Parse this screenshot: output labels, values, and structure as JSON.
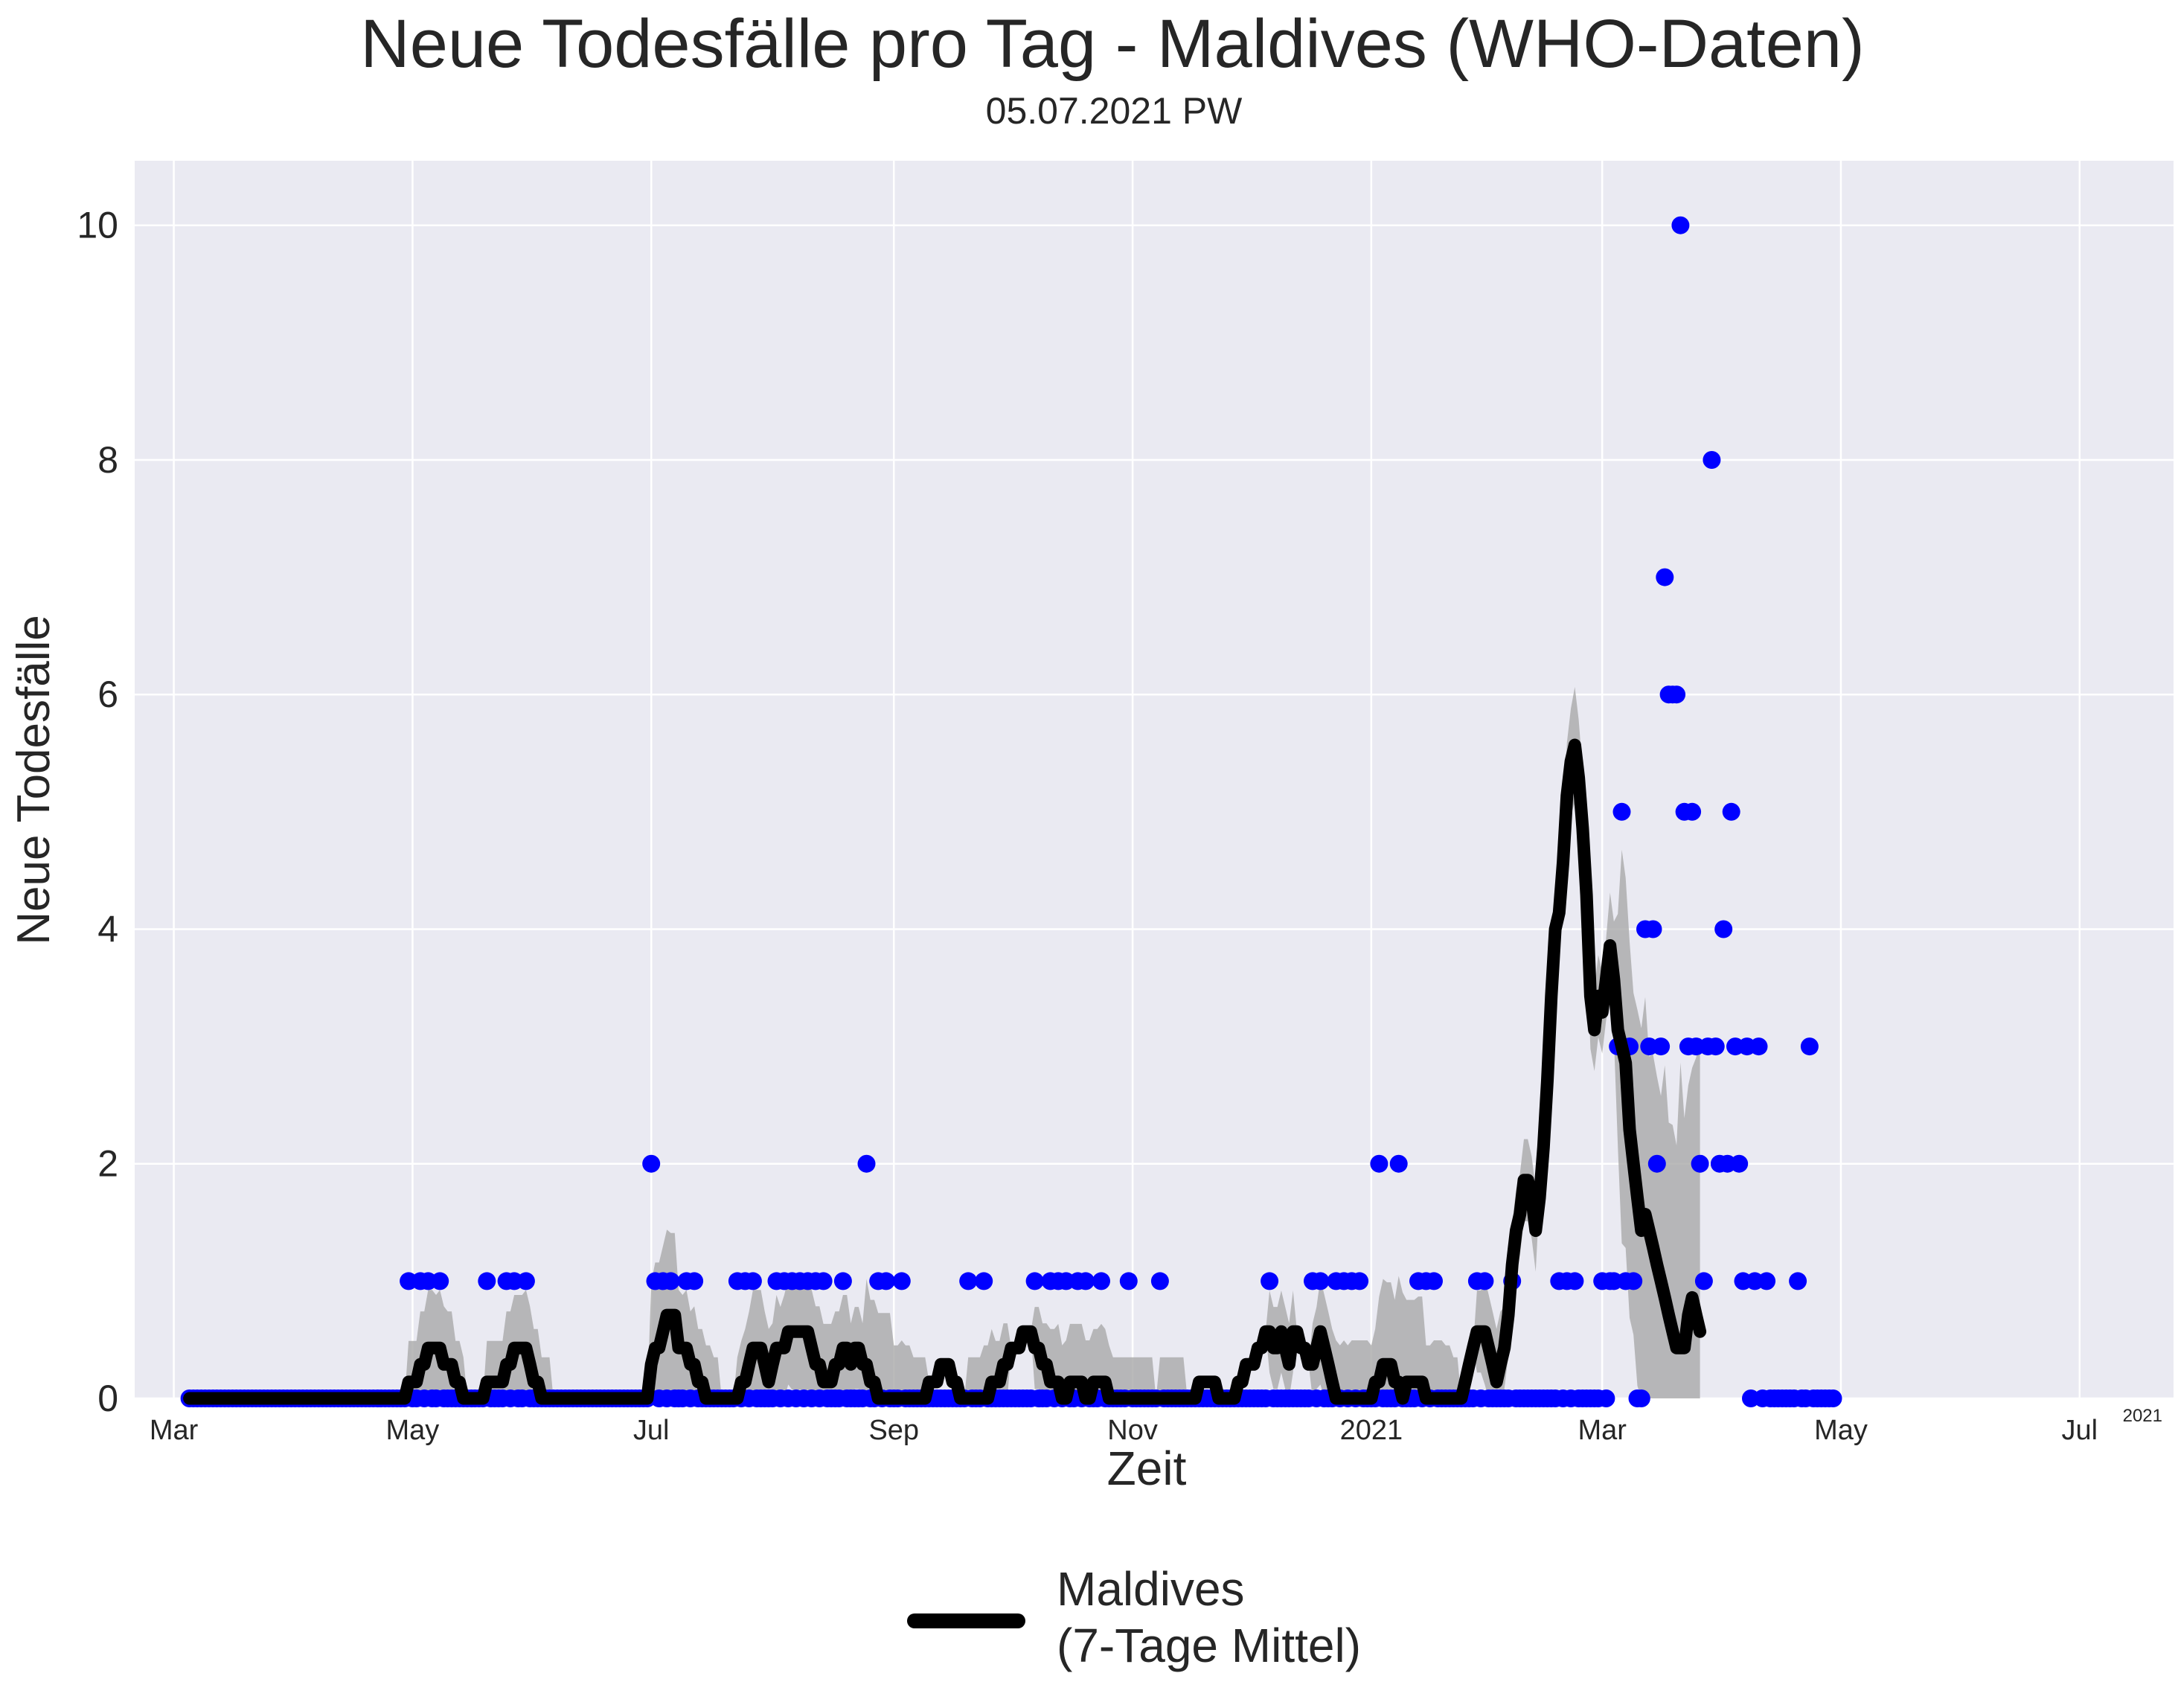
{
  "chart_data": {
    "type": "scatter",
    "title": "Neue Todesfälle pro Tag - Maldives (WHO-Daten)",
    "subtitle": "05.07.2021 PW",
    "xlabel": "Zeit",
    "ylabel": "Neue Todesfälle",
    "x_range": [
      "2020-02-20",
      "2021-07-25"
    ],
    "y_range": [
      0,
      10.55
    ],
    "y_ticks": [
      0,
      2,
      4,
      6,
      8,
      10
    ],
    "x_tick_labels": [
      {
        "date": "2020-03-01",
        "label": "Mar"
      },
      {
        "date": "2020-05-01",
        "label": "May"
      },
      {
        "date": "2020-07-01",
        "label": "Jul"
      },
      {
        "date": "2020-09-01",
        "label": "Sep"
      },
      {
        "date": "2020-11-01",
        "label": "Nov"
      },
      {
        "date": "2021-01-01",
        "label": "2021"
      },
      {
        "date": "2021-03-01",
        "label": "Mar"
      },
      {
        "date": "2021-05-01",
        "label": "May"
      },
      {
        "date": "2021-07-01",
        "label": "Jul"
      }
    ],
    "x_offset_label": "2021",
    "grid": true,
    "legend_position": "bottom-center",
    "legend": {
      "line1": "Maldives",
      "line2": "(7-Tage Mittel)"
    },
    "colors": {
      "background": "#EAEAF2",
      "points": "#0000FF",
      "mean_line": "#000000",
      "band": "#A9A9A9"
    },
    "series": [
      {
        "name": "Neue Todesfälle",
        "style": "points",
        "start_date": "2020-03-05",
        "end_date": "2021-07-04",
        "values": [
          0,
          0,
          0,
          0,
          0,
          0,
          0,
          0,
          0,
          0,
          0,
          0,
          0,
          0,
          0,
          0,
          0,
          0,
          0,
          0,
          0,
          0,
          0,
          0,
          0,
          0,
          0,
          0,
          0,
          0,
          0,
          0,
          0,
          0,
          0,
          0,
          0,
          0,
          0,
          0,
          0,
          0,
          0,
          0,
          0,
          0,
          0,
          0,
          0,
          0,
          0,
          0,
          0,
          0,
          0,
          0,
          1,
          0,
          0,
          1,
          0,
          1,
          0,
          0,
          1,
          0,
          0,
          0,
          0,
          0,
          0,
          0,
          0,
          0,
          0,
          0,
          1,
          0,
          0,
          0,
          0,
          1,
          0,
          1,
          0,
          0,
          1,
          0,
          0,
          0,
          0,
          0,
          0,
          0,
          0,
          0,
          0,
          0,
          0,
          0,
          0,
          0,
          0,
          0,
          0,
          0,
          0,
          0,
          0,
          0,
          0,
          0,
          0,
          0,
          0,
          0,
          0,
          0,
          2,
          1,
          0,
          1,
          0,
          1,
          0,
          0,
          0,
          1,
          0,
          1,
          0,
          0,
          0,
          0,
          0,
          0,
          0,
          0,
          0,
          0,
          1,
          0,
          1,
          0,
          1,
          0,
          0,
          0,
          0,
          0,
          1,
          0,
          1,
          0,
          1,
          0,
          1,
          0,
          1,
          0,
          1,
          0,
          1,
          0,
          0,
          0,
          0,
          1,
          0,
          0,
          0,
          0,
          0,
          2,
          0,
          0,
          1,
          0,
          1,
          0,
          0,
          0,
          1,
          0,
          0,
          0,
          0,
          0,
          0,
          0,
          0,
          0,
          0,
          0,
          0,
          0,
          0,
          0,
          0,
          1,
          0,
          0,
          0,
          1,
          0,
          0,
          0,
          0,
          0,
          0,
          0,
          0,
          0,
          0,
          0,
          0,
          1,
          0,
          0,
          0,
          1,
          0,
          1,
          0,
          1,
          0,
          0,
          1,
          0,
          1,
          0,
          0,
          0,
          1,
          0,
          0,
          0,
          0,
          0,
          0,
          1,
          0,
          0,
          0,
          0,
          0,
          0,
          0,
          1,
          0,
          0,
          0,
          0,
          0,
          0,
          0,
          0,
          0,
          0,
          0,
          0,
          0,
          0,
          0,
          0,
          0,
          0,
          0,
          0,
          0,
          0,
          0,
          0,
          0,
          0,
          0,
          1,
          0,
          0,
          0,
          0,
          0,
          0,
          0,
          0,
          0,
          0,
          1,
          0,
          1,
          0,
          0,
          0,
          1,
          0,
          1,
          0,
          1,
          0,
          1,
          0,
          0,
          0,
          0,
          2,
          0,
          0,
          0,
          0,
          2,
          0,
          0,
          0,
          0,
          1,
          0,
          1,
          0,
          1,
          0,
          0,
          0,
          0,
          0,
          0,
          0,
          0,
          0,
          0,
          1,
          0,
          1,
          0,
          0,
          0,
          0,
          0,
          0,
          1,
          0,
          0,
          0,
          0,
          0,
          0,
          0,
          0,
          0,
          0,
          0,
          1,
          0,
          1,
          0,
          1,
          0,
          0,
          0,
          0,
          0,
          0,
          1,
          0,
          1,
          1,
          3,
          5,
          1,
          3,
          1,
          0,
          0,
          4,
          3,
          4,
          2,
          3,
          7,
          6,
          6,
          6,
          10,
          5,
          3,
          5,
          3,
          2,
          1,
          3,
          8,
          3,
          2,
          4,
          2,
          5,
          3,
          2,
          1,
          3,
          0,
          1,
          3,
          0,
          1,
          0,
          0,
          0,
          0,
          0,
          0,
          0,
          1,
          0,
          0,
          3,
          0,
          0,
          0,
          0,
          0,
          0
        ]
      },
      {
        "name": "Maldives (7-Tage Mittel)",
        "style": "line",
        "start_date": "2020-03-05",
        "end_date": "2021-07-04",
        "values": [
          0,
          0,
          0,
          0,
          0,
          0,
          0,
          0,
          0,
          0,
          0,
          0,
          0,
          0,
          0,
          0,
          0,
          0,
          0,
          0,
          0,
          0,
          0,
          0,
          0,
          0,
          0,
          0,
          0,
          0,
          0,
          0,
          0,
          0,
          0,
          0,
          0,
          0,
          0,
          0,
          0,
          0,
          0,
          0,
          0,
          0,
          0,
          0,
          0,
          0,
          0,
          0,
          0,
          0,
          0,
          0,
          0.14,
          0.14,
          0.14,
          0.29,
          0.29,
          0.43,
          0.43,
          0.43,
          0.43,
          0.29,
          0.29,
          0.29,
          0.14,
          0.14,
          0,
          0,
          0,
          0,
          0,
          0,
          0.14,
          0.14,
          0.14,
          0.14,
          0.14,
          0.29,
          0.29,
          0.43,
          0.43,
          0.43,
          0.43,
          0.29,
          0.14,
          0.14,
          0,
          0,
          0,
          0,
          0,
          0,
          0,
          0,
          0,
          0,
          0,
          0,
          0,
          0,
          0,
          0,
          0,
          0,
          0,
          0,
          0,
          0,
          0,
          0,
          0,
          0,
          0,
          0,
          0.29,
          0.43,
          0.43,
          0.57,
          0.71,
          0.71,
          0.71,
          0.43,
          0.43,
          0.43,
          0.29,
          0.29,
          0.14,
          0.14,
          0,
          0,
          0,
          0,
          0,
          0,
          0,
          0,
          0,
          0.14,
          0.14,
          0.29,
          0.43,
          0.43,
          0.43,
          0.29,
          0.14,
          0.29,
          0.43,
          0.43,
          0.43,
          0.57,
          0.57,
          0.57,
          0.57,
          0.57,
          0.57,
          0.43,
          0.29,
          0.29,
          0.14,
          0.14,
          0.14,
          0.29,
          0.29,
          0.43,
          0.43,
          0.29,
          0.43,
          0.43,
          0.29,
          0.29,
          0.14,
          0.14,
          0,
          0,
          0,
          0,
          0,
          0,
          0,
          0,
          0,
          0,
          0,
          0,
          0,
          0.14,
          0.14,
          0.14,
          0.29,
          0.29,
          0.29,
          0.14,
          0.14,
          0,
          0,
          0,
          0,
          0,
          0,
          0,
          0,
          0.14,
          0.14,
          0.14,
          0.29,
          0.29,
          0.43,
          0.43,
          0.43,
          0.57,
          0.57,
          0.57,
          0.43,
          0.43,
          0.29,
          0.29,
          0.14,
          0.14,
          0.14,
          0,
          0,
          0.14,
          0.14,
          0.14,
          0.14,
          0,
          0,
          0.14,
          0.14,
          0.14,
          0.14,
          0,
          0,
          0,
          0,
          0,
          0,
          0,
          0,
          0,
          0,
          0,
          0,
          0,
          0,
          0,
          0,
          0,
          0,
          0,
          0,
          0,
          0,
          0,
          0.14,
          0.14,
          0.14,
          0.14,
          0.14,
          0,
          0,
          0,
          0,
          0,
          0.14,
          0.14,
          0.29,
          0.29,
          0.29,
          0.43,
          0.43,
          0.57,
          0.57,
          0.43,
          0.43,
          0.57,
          0.43,
          0.29,
          0.57,
          0.57,
          0.43,
          0.43,
          0.29,
          0.29,
          0.43,
          0.57,
          0.43,
          0.29,
          0.14,
          0,
          0,
          0,
          0,
          0,
          0,
          0,
          0,
          0,
          0,
          0.14,
          0.14,
          0.29,
          0.29,
          0.29,
          0.14,
          0.14,
          0,
          0.14,
          0.14,
          0.14,
          0.14,
          0.14,
          0,
          0,
          0,
          0,
          0,
          0,
          0,
          0,
          0,
          0,
          0.14,
          0.29,
          0.43,
          0.57,
          0.57,
          0.57,
          0.43,
          0.29,
          0.14,
          0.29,
          0.43,
          0.71,
          1.14,
          1.43,
          1.57,
          1.86,
          1.86,
          1.71,
          1.43,
          1.71,
          2.14,
          2.71,
          3.43,
          4.0,
          4.14,
          4.57,
          5.14,
          5.43,
          5.57,
          5.29,
          4.86,
          4.29,
          3.43,
          3.14,
          3.43,
          3.29,
          3.57,
          3.86,
          3.57,
          3.14,
          3.0,
          2.86,
          2.29,
          2.0,
          1.71,
          1.43,
          1.57,
          1.43,
          1.29,
          1.14,
          1.0,
          0.86,
          0.71,
          0.57,
          0.43,
          0.43,
          0.43,
          0.71,
          0.86,
          0.71,
          0.57
        ]
      }
    ]
  }
}
